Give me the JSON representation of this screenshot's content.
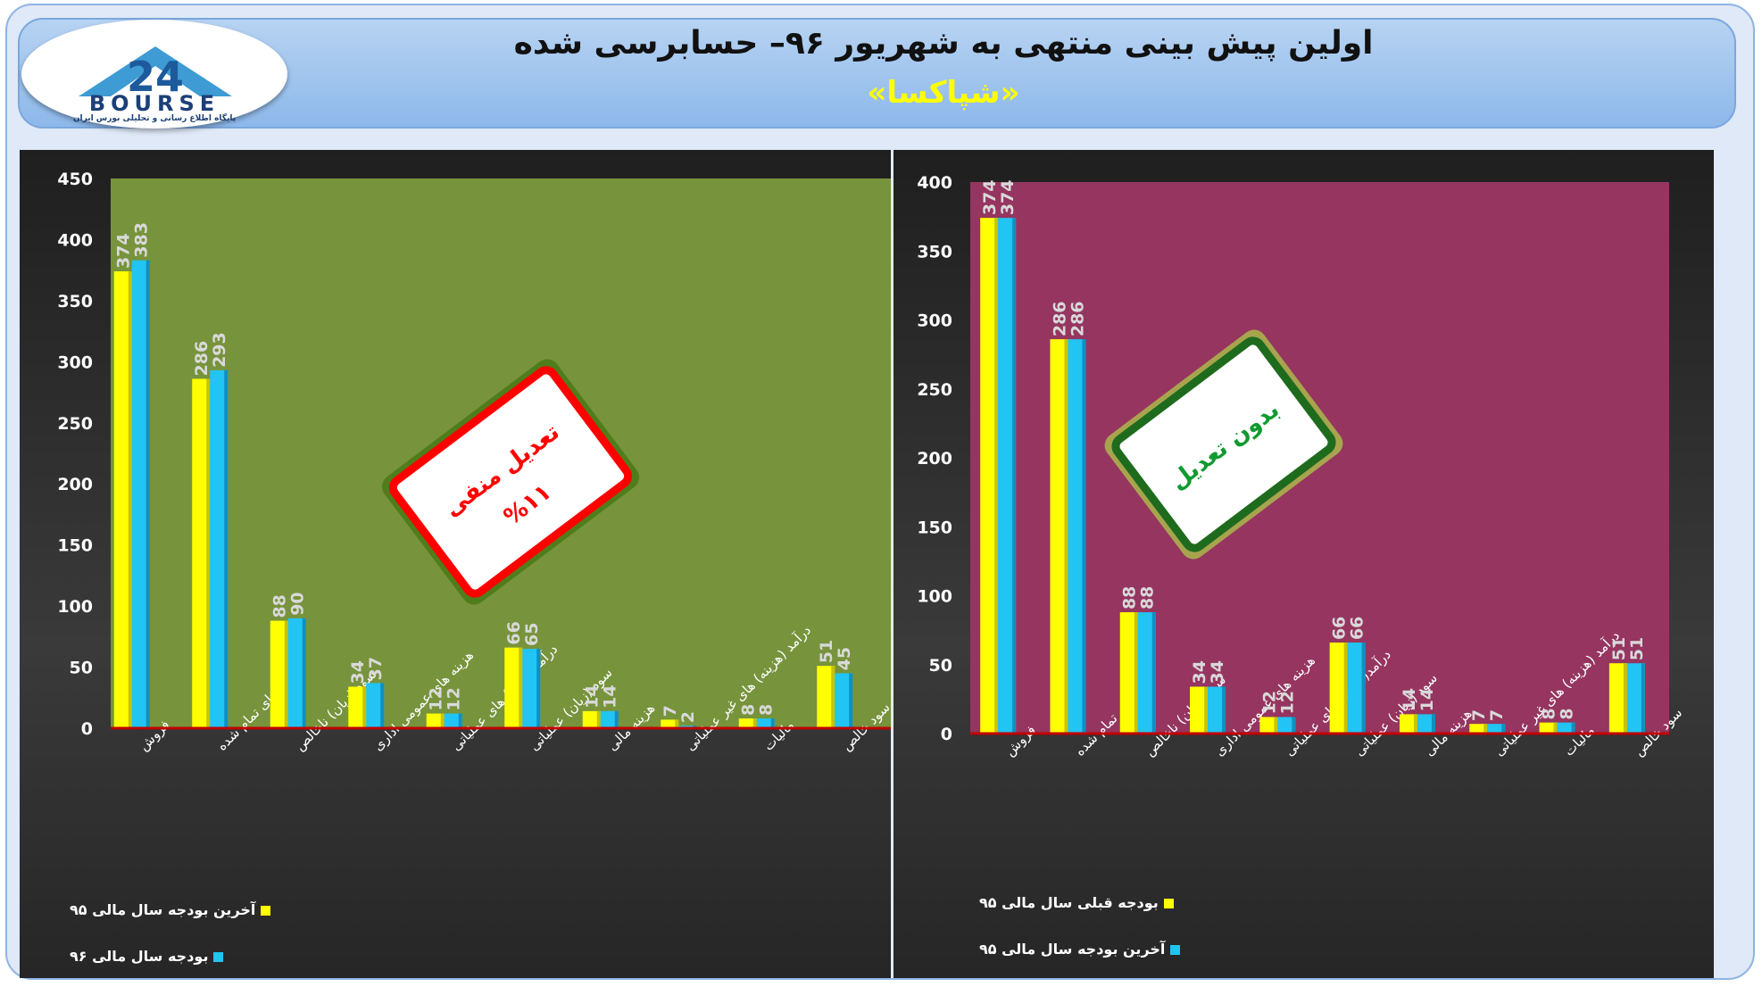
{
  "header": {
    "title": "اولین پیش بینی منتهی به شهریور ۹۶– حسابرسی شده",
    "subtitle": "«شپاکسا»",
    "logo_word": "BOURSE",
    "logo_tagline": "پایگاه اطلاع رسانی و تحلیلی بورس ایران",
    "logo_mark": "24"
  },
  "colors": {
    "yellow": "#ffff00",
    "cyan": "#21c4f3",
    "left_bg": "#77933c",
    "right_bg": "#953560",
    "axis_line": "#c00000"
  },
  "chart_data": [
    {
      "type": "bar",
      "categories": [
        "فروش",
        "بهای تمام شده",
        "سود (زیان) ناخالص",
        "هزینه های عمومی اداری",
        "درآمد(هزینه) های عملیاتی",
        "سود (زیان) عملیاتی",
        "هزینه مالی",
        "درآمد (هزینه) های غیر عملیاتی",
        "مالیات",
        "سود خالص"
      ],
      "series": [
        {
          "name": "آخرین بودجه سال مالی ۹۵",
          "values": [
            374,
            286,
            88,
            34,
            12,
            66,
            14,
            7,
            8,
            51
          ]
        },
        {
          "name": "بودجه سال مالی ۹۶",
          "values": [
            383,
            293,
            90,
            37,
            12,
            65,
            14,
            2,
            8,
            45
          ]
        }
      ],
      "ylim": [
        0,
        450
      ],
      "yticks": [
        "0",
        "50",
        "100",
        "150",
        "200",
        "250",
        "300",
        "350",
        "400",
        "450"
      ],
      "grid": false,
      "legend_position": "bottom-left",
      "badge": {
        "line1": "تعدیل منفی",
        "line2": "%۱۱"
      }
    },
    {
      "type": "bar",
      "categories": [
        "فروش",
        "بهای تمام شده",
        "سود (زیان) ناخالص",
        "هزینه های عمومی اداری",
        "درآمد(هزینه) های عملیاتی",
        "سود (زیان) عملیاتی",
        "هزینه مالی",
        "درآمد (هزینه) های غیر عملیاتی",
        "مالیات",
        "سود خالص"
      ],
      "series": [
        {
          "name": "بودجه قبلی سال مالی ۹۵",
          "values": [
            374,
            286,
            88,
            34,
            12,
            66,
            14,
            7,
            8,
            51
          ]
        },
        {
          "name": "آخرین بودجه سال مالی ۹۵",
          "values": [
            374,
            286,
            88,
            34,
            12,
            66,
            14,
            7,
            8,
            51
          ]
        }
      ],
      "ylim": [
        0,
        400
      ],
      "yticks": [
        "0",
        "50",
        "100",
        "150",
        "200",
        "250",
        "300",
        "350",
        "400"
      ],
      "grid": false,
      "legend_position": "bottom-left",
      "badge": {
        "line1": "بدون تعدیل"
      }
    }
  ]
}
